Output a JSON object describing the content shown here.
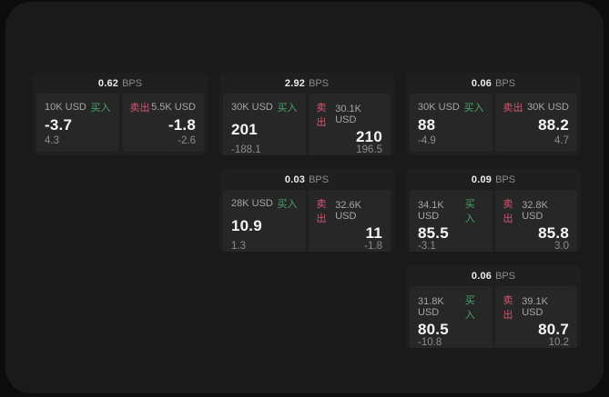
{
  "labels": {
    "bps": "BPS",
    "buy": "买入",
    "sell": "卖出"
  },
  "colors": {
    "buy_accent": "#4ba46a",
    "sell_accent": "#d5566f",
    "panel_bg": "#1a1a1b",
    "card_bg": "#1f1f20",
    "side_bg": "#272728"
  },
  "cards": [
    {
      "bps": "0.62",
      "buy": {
        "notional": "10K USD",
        "price": "-3.7",
        "delta": "4.3"
      },
      "sell": {
        "notional": "5.5K USD",
        "price": "-1.8",
        "delta": "-2.6"
      }
    },
    {
      "bps": "2.92",
      "buy": {
        "notional": "30K USD",
        "price": "201",
        "delta": "-188.1"
      },
      "sell": {
        "notional": "30.1K USD",
        "price": "210",
        "delta": "196.5"
      }
    },
    {
      "bps": "0.06",
      "buy": {
        "notional": "30K USD",
        "price": "88",
        "delta": "-4.9"
      },
      "sell": {
        "notional": "30K USD",
        "price": "88.2",
        "delta": "4.7"
      }
    },
    {
      "bps": "0.03",
      "buy": {
        "notional": "28K USD",
        "price": "10.9",
        "delta": "1.3"
      },
      "sell": {
        "notional": "32.6K USD",
        "price": "11",
        "delta": "-1.8"
      }
    },
    {
      "bps": "0.09",
      "buy": {
        "notional": "34.1K USD",
        "price": "85.5",
        "delta": "-3.1"
      },
      "sell": {
        "notional": "32.8K USD",
        "price": "85.8",
        "delta": "3.0"
      }
    },
    {
      "bps": "0.06",
      "buy": {
        "notional": "31.8K USD",
        "price": "80.5",
        "delta": "-10.8"
      },
      "sell": {
        "notional": "39.1K USD",
        "price": "80.7",
        "delta": "10.2"
      }
    }
  ]
}
